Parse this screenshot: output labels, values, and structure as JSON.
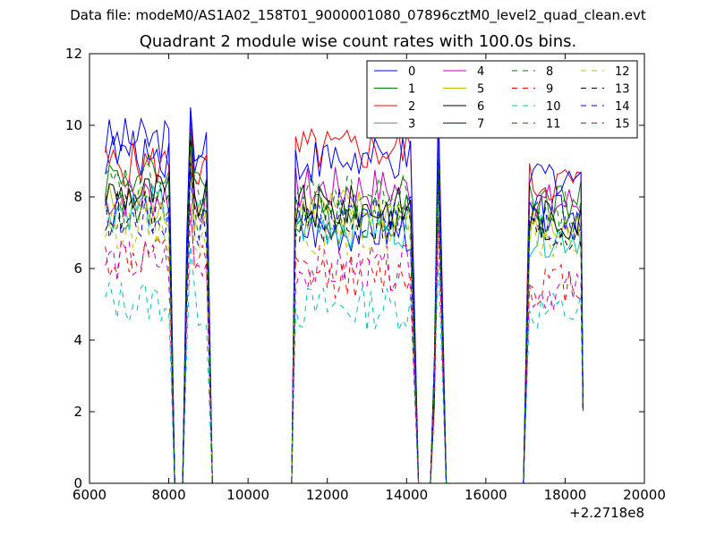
{
  "figure": {
    "suptitle": "Data file: modeM0/AS1A02_158T01_9000001080_07896cztM0_level2_quad_clean.evt",
    "title": "Quadrant 2 module wise count rates with 100.0s bins.",
    "x_offset_label": "+2.2718e8"
  },
  "chart_data": {
    "type": "line",
    "title": "Quadrant 2 module wise count rates with 100.0s bins.",
    "xlabel": "",
    "ylabel": "",
    "xlim": [
      6000,
      20000
    ],
    "ylim": [
      0,
      12
    ],
    "x_ticks": [
      6000,
      8000,
      10000,
      12000,
      14000,
      16000,
      18000,
      20000
    ],
    "y_ticks": [
      0,
      2,
      4,
      6,
      8,
      10,
      12
    ],
    "x_tick_labels": [
      "6000",
      "8000",
      "10000",
      "12000",
      "14000",
      "16000",
      "18000",
      "20000"
    ],
    "y_tick_labels": [
      "0",
      "2",
      "4",
      "6",
      "8",
      "10",
      "12"
    ],
    "x_offset": "+2.2718e8",
    "grid": false,
    "legend": {
      "placement": "top-right",
      "columns": 4
    },
    "segments": [
      {
        "x_start": 6400,
        "x_end": 8050,
        "drop_to": 8150
      },
      {
        "x_start": 8550,
        "x_end": 8950,
        "drop_to": 9100
      },
      {
        "x_start": 11200,
        "x_end": 14150,
        "drop_to": 14300
      },
      {
        "x_start": 14800,
        "x_end": 14800,
        "drop_to": 15000
      },
      {
        "x_start": 17050,
        "x_end": 18400,
        "drop_to": 18450
      }
    ],
    "spike_x": [
      8550,
      14800
    ],
    "series": [
      {
        "name": "0",
        "color": "#0000ff",
        "dash": "solid",
        "level_a": 9.6,
        "level_b": 7.1,
        "level_c": 7.5
      },
      {
        "name": "1",
        "color": "#008000",
        "dash": "solid",
        "level_a": 8.6,
        "level_b": 7.5,
        "level_c": 7.9
      },
      {
        "name": "2",
        "color": "#ff0000",
        "dash": "solid",
        "level_a": 8.9,
        "level_b": 9.3,
        "level_c": 8.4
      },
      {
        "name": "3",
        "color": "#00bfbf",
        "dash": "solid",
        "level_a": 7.7,
        "level_b": 7.2,
        "level_c": 6.9
      },
      {
        "name": "4",
        "color": "#bf00bf",
        "dash": "solid",
        "level_a": 8.0,
        "level_b": 8.2,
        "level_c": 7.8
      },
      {
        "name": "5",
        "color": "#bfbf00",
        "dash": "solid",
        "level_a": 7.8,
        "level_b": 7.6,
        "level_c": 7.1
      },
      {
        "name": "6",
        "color": "#000000",
        "dash": "solid",
        "level_a": 8.1,
        "level_b": 7.7,
        "level_c": 7.4
      },
      {
        "name": "7",
        "color": "#0000ff",
        "dash": "solid",
        "level_a": 9.2,
        "level_b": 9.0,
        "level_c": 8.6
      },
      {
        "name": "8",
        "color": "#008000",
        "dash": "dashed",
        "level_a": 7.5,
        "level_b": 7.4,
        "level_c": 7.2
      },
      {
        "name": "9",
        "color": "#ff0000",
        "dash": "dashed",
        "level_a": 6.3,
        "level_b": 5.8,
        "level_c": 5.6
      },
      {
        "name": "10",
        "color": "#00bfbf",
        "dash": "dashed",
        "level_a": 5.1,
        "level_b": 4.9,
        "level_c": 4.8
      },
      {
        "name": "11",
        "color": "#bf00bf",
        "dash": "dashed",
        "level_a": 6.2,
        "level_b": 6.0,
        "level_c": 5.4
      },
      {
        "name": "12",
        "color": "#bfbf00",
        "dash": "dashed",
        "level_a": 7.2,
        "level_b": 7.0,
        "level_c": 6.8
      },
      {
        "name": "13",
        "color": "#000000",
        "dash": "dashed",
        "level_a": 7.6,
        "level_b": 7.3,
        "level_c": 7.0
      },
      {
        "name": "14",
        "color": "#0000ff",
        "dash": "dashed",
        "level_a": 7.4,
        "level_b": 7.6,
        "level_c": 7.1
      },
      {
        "name": "15",
        "color": "#008000",
        "dash": "dashed",
        "level_a": 8.3,
        "level_b": 8.0,
        "level_c": 7.6
      }
    ]
  }
}
